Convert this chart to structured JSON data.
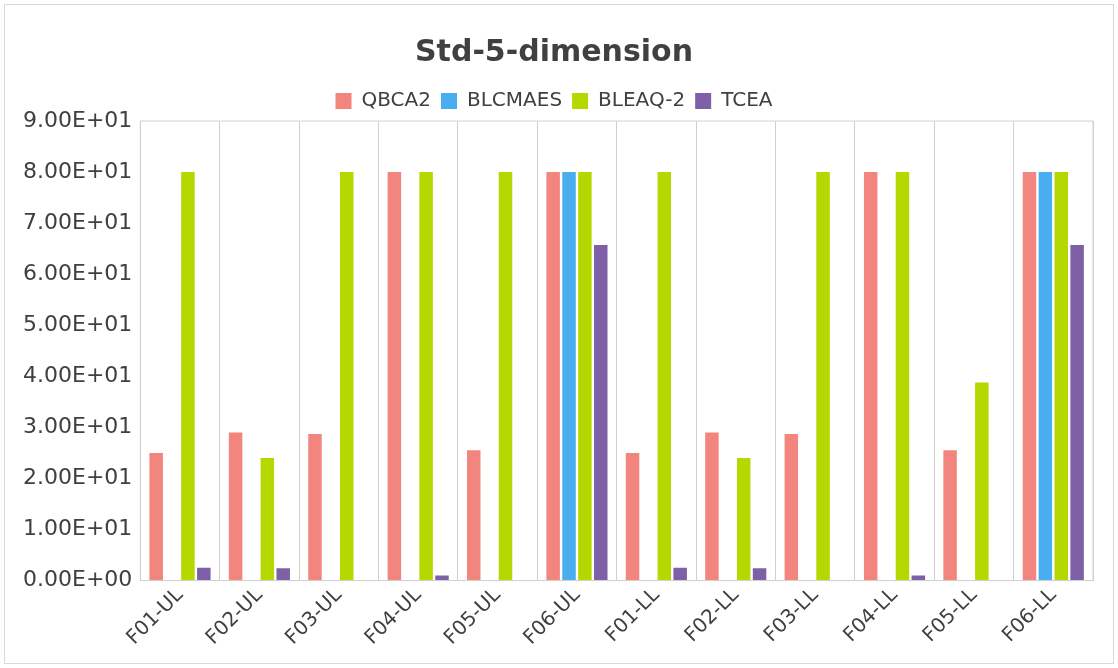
{
  "chart_data": {
    "type": "bar",
    "title": "Std-5-dimension",
    "categories": [
      "F01-UL",
      "F02-UL",
      "F03-UL",
      "F04-UL",
      "F05-UL",
      "F06-UL",
      "F01-LL",
      "F02-LL",
      "F03-LL",
      "F04-LL",
      "F05-LL",
      "F06-LL"
    ],
    "series": [
      {
        "name": "QBCA2",
        "color": "#f2857e",
        "values": [
          25,
          29,
          28.7,
          80,
          25.5,
          80,
          25,
          29,
          28.7,
          80,
          25.5,
          80
        ]
      },
      {
        "name": "BLCMAES",
        "color": "#48aef0",
        "values": [
          0,
          0,
          0,
          0,
          0,
          80,
          0,
          0,
          0,
          0,
          0,
          80
        ]
      },
      {
        "name": "BLEAQ-2",
        "color": "#b4d800",
        "values": [
          80,
          24,
          80,
          80,
          80,
          80,
          80,
          24,
          80,
          80,
          38.8,
          80
        ]
      },
      {
        "name": "TCEA",
        "color": "#7e60a6",
        "values": [
          2.5,
          2.4,
          0,
          1,
          0,
          65.7,
          2.5,
          2.4,
          0,
          1,
          0,
          65.7
        ]
      }
    ],
    "ylim": [
      0,
      90
    ],
    "yticks": [
      {
        "value": 0,
        "label": "0.00E+00"
      },
      {
        "value": 10,
        "label": "1.00E+01"
      },
      {
        "value": 20,
        "label": "2.00E+01"
      },
      {
        "value": 30,
        "label": "3.00E+01"
      },
      {
        "value": 40,
        "label": "4.00E+01"
      },
      {
        "value": 50,
        "label": "5.00E+01"
      },
      {
        "value": 60,
        "label": "6.00E+01"
      },
      {
        "value": 70,
        "label": "7.00E+01"
      },
      {
        "value": 80,
        "label": "8.00E+01"
      },
      {
        "value": 90,
        "label": "9.00E+01"
      }
    ],
    "grid": "x",
    "legend": "top"
  }
}
